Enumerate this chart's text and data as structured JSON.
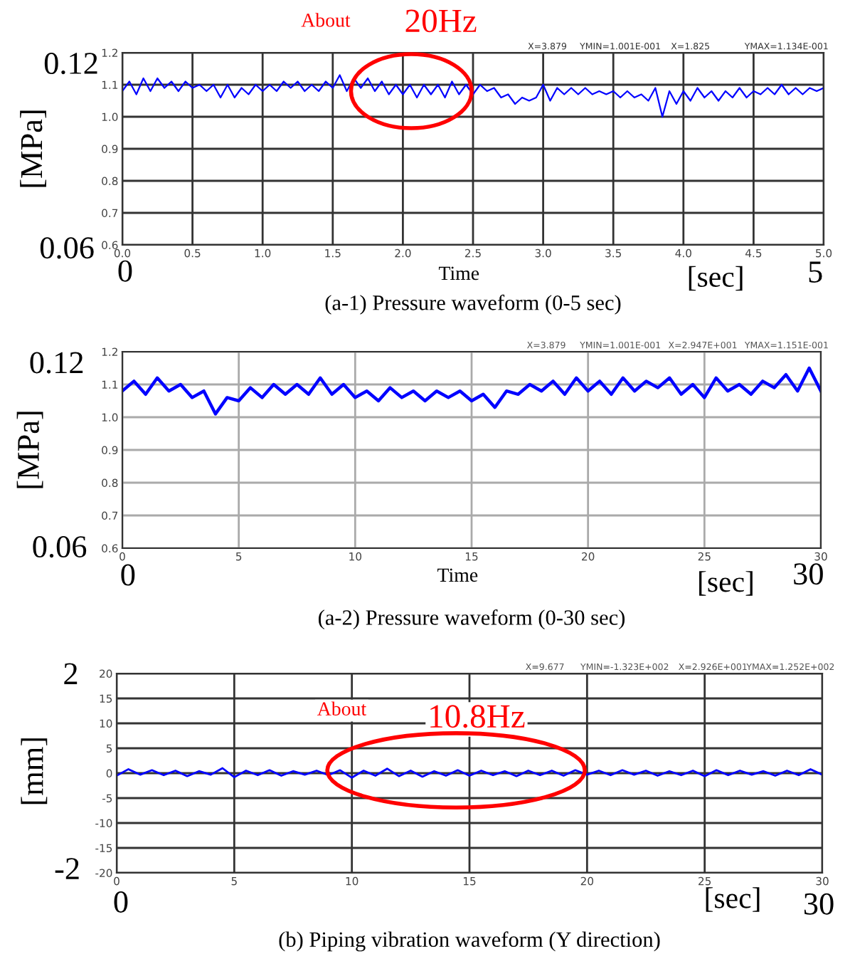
{
  "chart_data": [
    {
      "type": "line",
      "title": "(a-1) Pressure waveform (0-5 sec)",
      "xlabel": "Time",
      "ylabel": "[MPa]",
      "x": [
        0,
        0.05,
        0.1,
        0.15,
        0.2,
        0.25,
        0.3,
        0.35,
        0.4,
        0.45,
        0.5,
        0.55,
        0.6,
        0.65,
        0.7,
        0.75,
        0.8,
        0.85,
        0.9,
        0.95,
        1.0,
        1.05,
        1.1,
        1.15,
        1.2,
        1.25,
        1.3,
        1.35,
        1.4,
        1.45,
        1.5,
        1.55,
        1.6,
        1.65,
        1.7,
        1.75,
        1.8,
        1.85,
        1.9,
        1.95,
        2.0,
        2.05,
        2.1,
        2.15,
        2.2,
        2.25,
        2.3,
        2.35,
        2.4,
        2.45,
        2.5,
        2.55,
        2.6,
        2.65,
        2.7,
        2.75,
        2.8,
        2.85,
        2.9,
        2.95,
        3.0,
        3.05,
        3.1,
        3.15,
        3.2,
        3.25,
        3.3,
        3.35,
        3.4,
        3.45,
        3.5,
        3.55,
        3.6,
        3.65,
        3.7,
        3.75,
        3.8,
        3.85,
        3.9,
        3.95,
        4.0,
        4.05,
        4.1,
        4.15,
        4.2,
        4.25,
        4.3,
        4.35,
        4.4,
        4.45,
        4.5,
        4.55,
        4.6,
        4.65,
        4.7,
        4.75,
        4.8,
        4.85,
        4.9,
        4.95,
        5.0
      ],
      "series": [
        {
          "color": "#0000ff",
          "values": [
            1.08,
            1.11,
            1.07,
            1.12,
            1.08,
            1.12,
            1.09,
            1.11,
            1.08,
            1.11,
            1.09,
            1.1,
            1.08,
            1.1,
            1.06,
            1.1,
            1.06,
            1.09,
            1.07,
            1.1,
            1.08,
            1.1,
            1.08,
            1.11,
            1.09,
            1.11,
            1.08,
            1.1,
            1.08,
            1.11,
            1.09,
            1.13,
            1.08,
            1.12,
            1.09,
            1.12,
            1.08,
            1.11,
            1.07,
            1.1,
            1.07,
            1.1,
            1.06,
            1.1,
            1.07,
            1.1,
            1.06,
            1.11,
            1.07,
            1.1,
            1.07,
            1.1,
            1.08,
            1.09,
            1.06,
            1.07,
            1.04,
            1.06,
            1.05,
            1.06,
            1.1,
            1.05,
            1.09,
            1.07,
            1.09,
            1.07,
            1.09,
            1.07,
            1.08,
            1.07,
            1.08,
            1.06,
            1.08,
            1.06,
            1.07,
            1.05,
            1.09,
            1.0,
            1.08,
            1.04,
            1.08,
            1.05,
            1.09,
            1.06,
            1.08,
            1.05,
            1.08,
            1.06,
            1.09,
            1.06,
            1.08,
            1.07,
            1.09,
            1.07,
            1.1,
            1.07,
            1.09,
            1.07,
            1.09,
            1.08,
            1.09
          ]
        }
      ],
      "xlim": [
        0,
        5
      ],
      "ylim": [
        0.6,
        1.2
      ],
      "xticks": [
        {
          "value": 0,
          "label": "0.0"
        },
        0.5,
        {
          "value": 1,
          "label": "1.0"
        },
        1.5,
        {
          "value": 2,
          "label": "2.0"
        },
        2.5,
        {
          "value": 3,
          "label": "3.0"
        },
        3.5,
        {
          "value": 4,
          "label": "4.0"
        },
        4.5,
        {
          "value": 5,
          "label": "5.0"
        }
      ],
      "yticks": [
        0.6,
        0.7,
        0.8,
        0.9,
        {
          "value": 1.0,
          "label": "1.0"
        },
        1.1,
        1.2
      ],
      "grid": true,
      "annotations": [
        "About",
        "20Hz",
        "X=3.879",
        "YMIN=1.001E-001",
        "X=1.825",
        "YMAX=1.134E-001",
        "0.12",
        "0.06",
        "0",
        "5",
        "[sec]"
      ]
    },
    {
      "type": "line",
      "title": "(a-2) Pressure waveform (0-30 sec)",
      "xlabel": "Time",
      "ylabel": "[MPa]",
      "x": [
        0,
        0.5,
        1,
        1.5,
        2,
        2.5,
        3,
        3.5,
        4,
        4.5,
        5,
        5.5,
        6,
        6.5,
        7,
        7.5,
        8,
        8.5,
        9,
        9.5,
        10,
        10.5,
        11,
        11.5,
        12,
        12.5,
        13,
        13.5,
        14,
        14.5,
        15,
        15.5,
        16,
        16.5,
        17,
        17.5,
        18,
        18.5,
        19,
        19.5,
        20,
        20.5,
        21,
        21.5,
        22,
        22.5,
        23,
        23.5,
        24,
        24.5,
        25,
        25.5,
        26,
        26.5,
        27,
        27.5,
        28,
        28.5,
        29,
        29.5,
        30
      ],
      "series": [
        {
          "color": "#0000ff",
          "values": [
            1.08,
            1.11,
            1.07,
            1.12,
            1.08,
            1.1,
            1.06,
            1.08,
            1.01,
            1.06,
            1.05,
            1.09,
            1.06,
            1.1,
            1.07,
            1.1,
            1.07,
            1.12,
            1.07,
            1.1,
            1.06,
            1.08,
            1.05,
            1.09,
            1.06,
            1.08,
            1.05,
            1.08,
            1.06,
            1.08,
            1.05,
            1.07,
            1.03,
            1.08,
            1.07,
            1.1,
            1.08,
            1.11,
            1.07,
            1.12,
            1.08,
            1.11,
            1.07,
            1.12,
            1.08,
            1.11,
            1.09,
            1.12,
            1.07,
            1.1,
            1.06,
            1.12,
            1.08,
            1.1,
            1.07,
            1.11,
            1.09,
            1.13,
            1.08,
            1.15,
            1.08
          ]
        }
      ],
      "xlim": [
        0,
        30
      ],
      "ylim": [
        0.6,
        1.2
      ],
      "xticks": [
        0,
        5,
        10,
        15,
        20,
        25,
        30
      ],
      "yticks": [
        0.6,
        0.7,
        0.8,
        0.9,
        {
          "value": 1.0,
          "label": "1.0"
        },
        1.1,
        1.2
      ],
      "grid": true,
      "annotations": [
        "X=3.879",
        "YMIN=1.001E-001",
        "X=2.947E+001",
        "YMAX=1.151E-001",
        "0.12",
        "0.06",
        "0",
        "30",
        "[sec]"
      ]
    },
    {
      "type": "line",
      "title": "(b) Piping vibration waveform (Y direction)",
      "ylabel": "[mm]",
      "x": [
        0,
        0.5,
        1,
        1.5,
        2,
        2.5,
        3,
        3.5,
        4,
        4.5,
        5,
        5.5,
        6,
        6.5,
        7,
        7.5,
        8,
        8.5,
        9,
        9.5,
        10,
        10.5,
        11,
        11.5,
        12,
        12.5,
        13,
        13.5,
        14,
        14.5,
        15,
        15.5,
        16,
        16.5,
        17,
        17.5,
        18,
        18.5,
        19,
        19.5,
        20,
        20.5,
        21,
        21.5,
        22,
        22.5,
        23,
        23.5,
        24,
        24.5,
        25,
        25.5,
        26,
        26.5,
        27,
        27.5,
        28,
        28.5,
        29,
        29.5,
        30
      ],
      "series": [
        {
          "color": "#0000ff",
          "values": [
            -0.5,
            0.8,
            -0.3,
            0.6,
            -0.4,
            0.5,
            -0.6,
            0.4,
            -0.3,
            1.0,
            -0.8,
            0.5,
            -0.4,
            0.6,
            -0.5,
            0.4,
            -0.3,
            0.5,
            -0.4,
            0.6,
            -0.9,
            0.5,
            -0.5,
            0.9,
            -0.6,
            0.5,
            -0.7,
            0.4,
            -0.5,
            0.6,
            -0.5,
            0.5,
            -0.4,
            0.4,
            -0.6,
            0.5,
            -0.4,
            0.5,
            -0.5,
            0.6,
            -0.3,
            0.5,
            -0.4,
            0.6,
            -0.3,
            0.5,
            -0.5,
            0.4,
            -0.4,
            0.5,
            -0.6,
            0.6,
            -0.4,
            0.5,
            -0.3,
            0.4,
            -0.5,
            0.5,
            -0.4,
            0.8,
            -0.3
          ]
        }
      ],
      "xlim": [
        0,
        30
      ],
      "ylim": [
        -20,
        20
      ],
      "xticks": [
        0,
        5,
        10,
        15,
        20,
        25,
        30
      ],
      "yticks": [
        -20,
        -15,
        -10,
        -5,
        0,
        5,
        10,
        15,
        20
      ],
      "grid": true,
      "annotations": [
        "About",
        "10.8Hz",
        "X=9.677",
        "YMIN=-1.323E+002",
        "X=2.926E+001",
        "YMAX=1.252E+002",
        "2",
        "-2",
        "0",
        "30",
        "[sec]"
      ]
    }
  ]
}
